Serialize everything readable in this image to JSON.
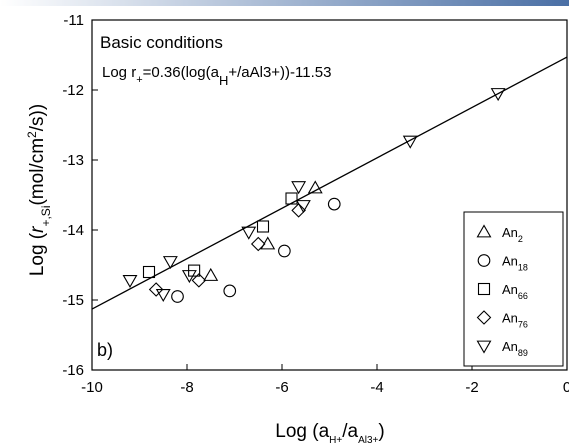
{
  "colors": {
    "top_band": "#4a6fa5",
    "ink": "#000000",
    "background": "#ffffff"
  },
  "chart_data": {
    "type": "scatter",
    "title": "Basic conditions",
    "equation": {
      "prefix": "Log r",
      "sub_plus": "+",
      "mid": "=0.36(log(a",
      "sub_h": "H",
      "suffix": "+/aAl3+))-11.53"
    },
    "panel_label": "b)",
    "xlabel": {
      "text": "Log (a",
      "sub1": "H+",
      "mid": "/a",
      "sub2": "Al3+",
      "end": ")"
    },
    "ylabel": {
      "text": "Log (",
      "r": "r",
      "sub": "+,Si",
      "unit": "(mol/cm",
      "sup": "2",
      "end": "/s))"
    },
    "xlim": [
      -10,
      0
    ],
    "ylim": [
      -16,
      -11
    ],
    "x_ticks": [
      -10,
      -8,
      -6,
      -4,
      -2,
      0
    ],
    "x_tick_labels": [
      "-10",
      "-8",
      "-6",
      "-4",
      "-2",
      "0"
    ],
    "y_ticks": [
      -16,
      -15,
      -14,
      -13,
      -12,
      -11
    ],
    "y_tick_labels": [
      "-16",
      "-15",
      "-14",
      "-13",
      "-12",
      "-11"
    ],
    "fit_line": {
      "slope": 0.36,
      "intercept": -11.53
    },
    "legend_position": "bottom-right",
    "series": [
      {
        "name": "An",
        "sub": "2",
        "marker": "triangle-up",
        "points": [
          [
            -7.5,
            -14.65
          ],
          [
            -6.3,
            -14.2
          ],
          [
            -5.3,
            -13.4
          ]
        ]
      },
      {
        "name": "An",
        "sub": "18",
        "marker": "circle",
        "points": [
          [
            -8.2,
            -14.95
          ],
          [
            -7.1,
            -14.87
          ],
          [
            -5.95,
            -14.3
          ],
          [
            -4.9,
            -13.63
          ]
        ]
      },
      {
        "name": "An",
        "sub": "66",
        "marker": "square",
        "points": [
          [
            -8.8,
            -14.6
          ],
          [
            -7.85,
            -14.58
          ],
          [
            -6.4,
            -13.95
          ],
          [
            -5.8,
            -13.55
          ]
        ]
      },
      {
        "name": "An",
        "sub": "76",
        "marker": "diamond",
        "points": [
          [
            -8.65,
            -14.85
          ],
          [
            -7.75,
            -14.72
          ],
          [
            -6.5,
            -14.2
          ],
          [
            -5.65,
            -13.72
          ]
        ]
      },
      {
        "name": "An",
        "sub": "89",
        "marker": "triangle-down",
        "points": [
          [
            -9.2,
            -14.72
          ],
          [
            -8.5,
            -14.92
          ],
          [
            -8.35,
            -14.45
          ],
          [
            -7.95,
            -14.65
          ],
          [
            -6.7,
            -14.03
          ],
          [
            -5.65,
            -13.38
          ],
          [
            -5.55,
            -13.65
          ],
          [
            -3.3,
            -12.73
          ],
          [
            -1.45,
            -12.05
          ]
        ]
      }
    ]
  }
}
